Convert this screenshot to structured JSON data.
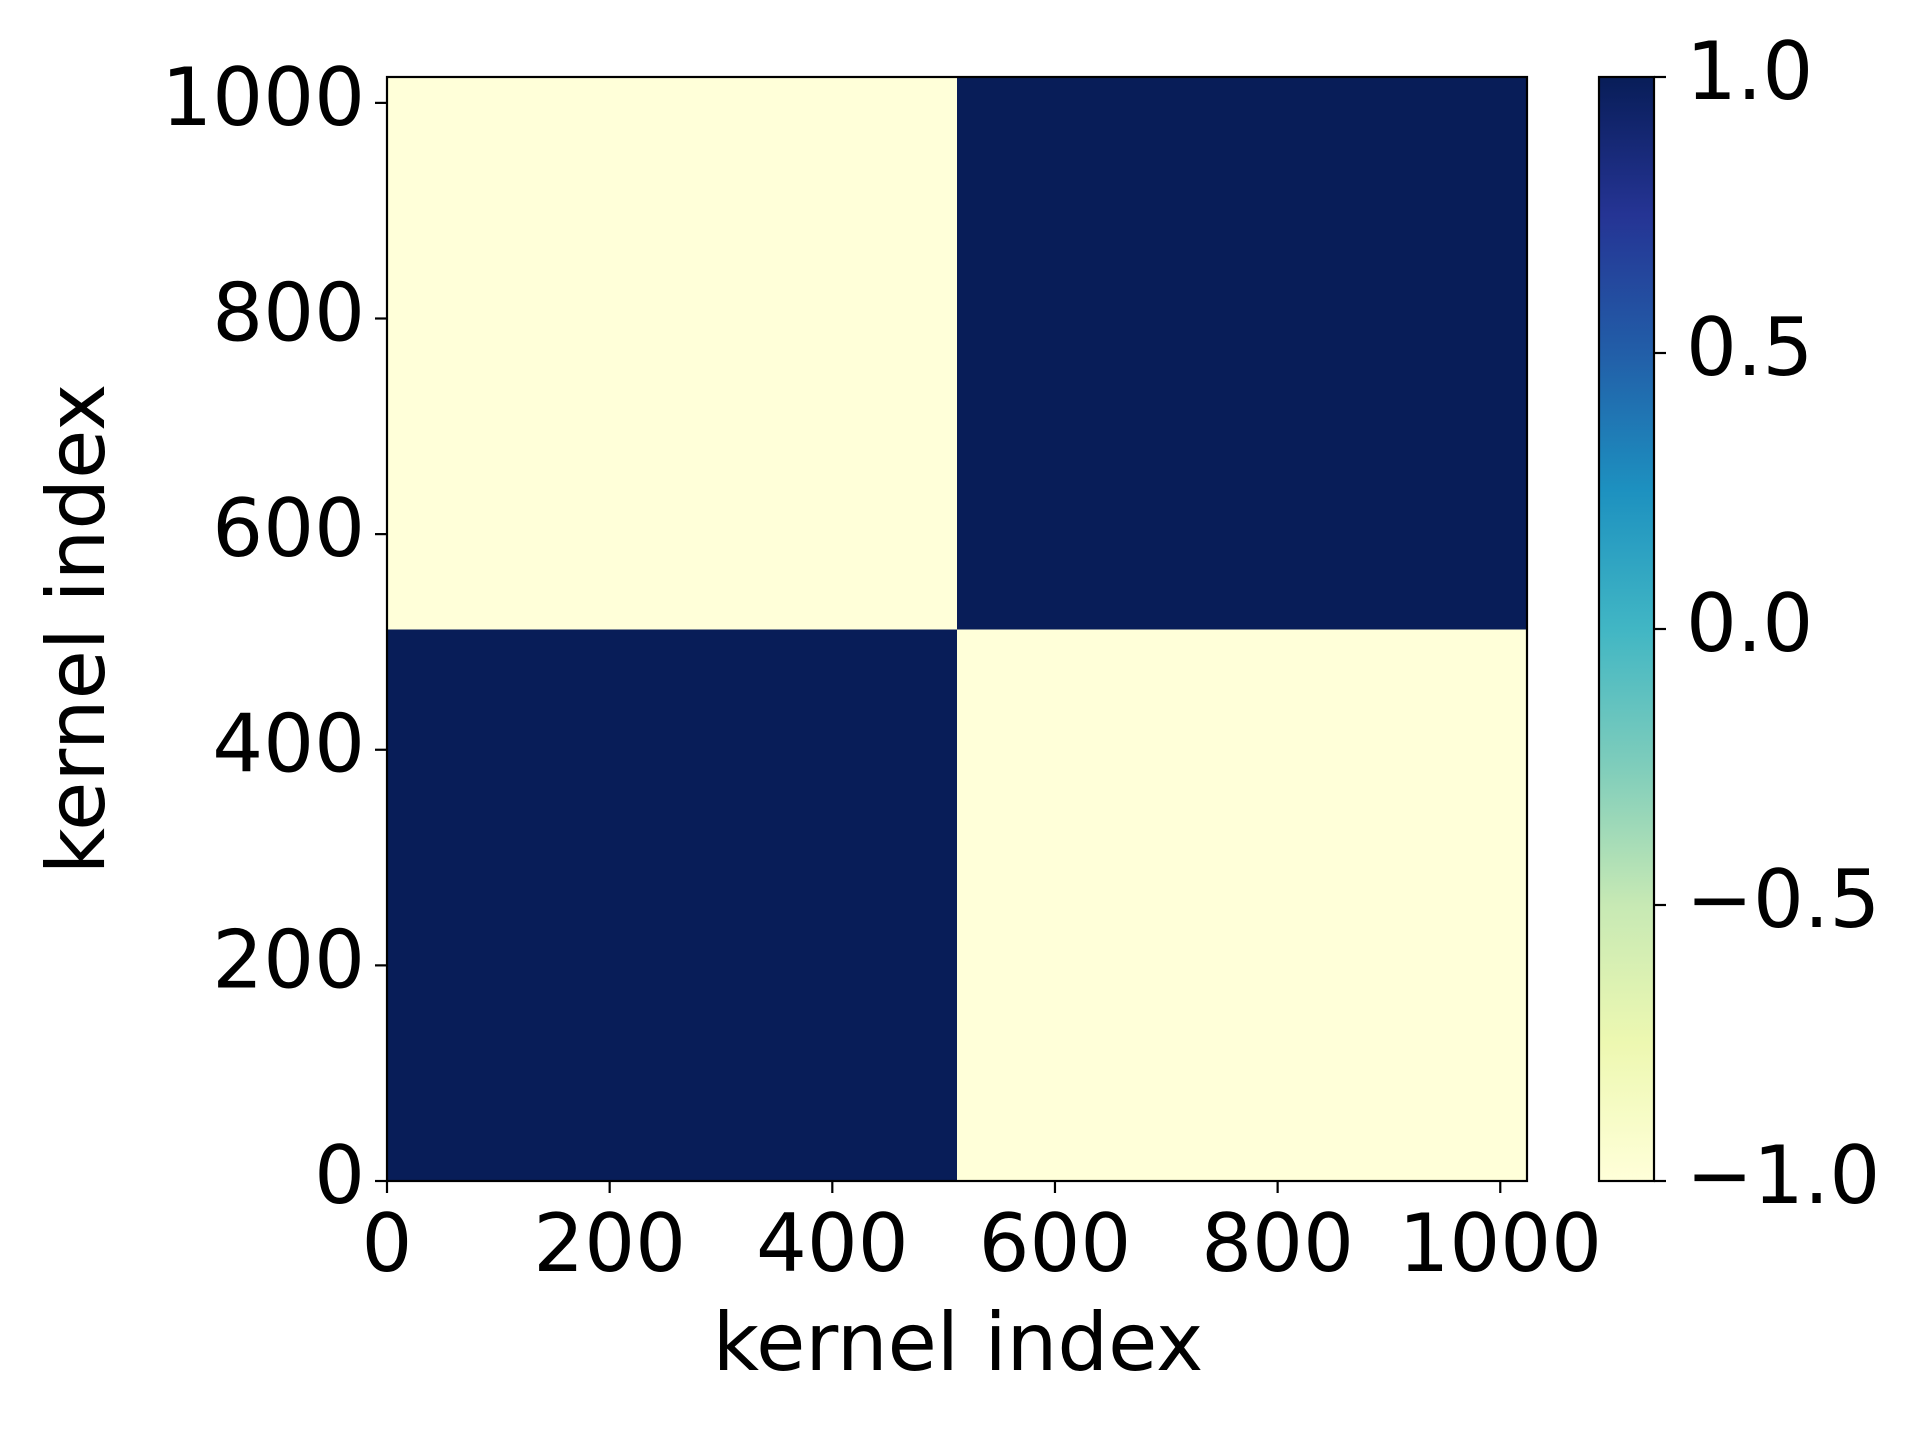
{
  "chart_data": {
    "type": "heatmap",
    "xlabel": "kernel index",
    "ylabel": "kernel index",
    "x_edges": [
      0,
      512,
      1024
    ],
    "y_edges": [
      0,
      512,
      1024
    ],
    "values": [
      [
        1,
        -1
      ],
      [
        -1,
        1
      ]
    ],
    "xlim": [
      0,
      1024
    ],
    "ylim": [
      0,
      1024
    ],
    "xticks": [
      0,
      200,
      400,
      600,
      800,
      1000
    ],
    "yticks": [
      0,
      200,
      400,
      600,
      800,
      1000
    ],
    "colormap": [
      "#ffffd9",
      "#edf8b1",
      "#c7e9b4",
      "#7fcdbb",
      "#41b6c4",
      "#1d91c0",
      "#225ea8",
      "#253494",
      "#081d58"
    ],
    "clim": [
      -1,
      1
    ],
    "cticks": [
      {
        "value": -1,
        "label": "−1.0"
      },
      {
        "value": -0.5,
        "label": "−0.5"
      },
      {
        "value": 0,
        "label": "0.0"
      },
      {
        "value": 0.5,
        "label": "0.5"
      },
      {
        "value": 1,
        "label": "1.0"
      }
    ]
  }
}
